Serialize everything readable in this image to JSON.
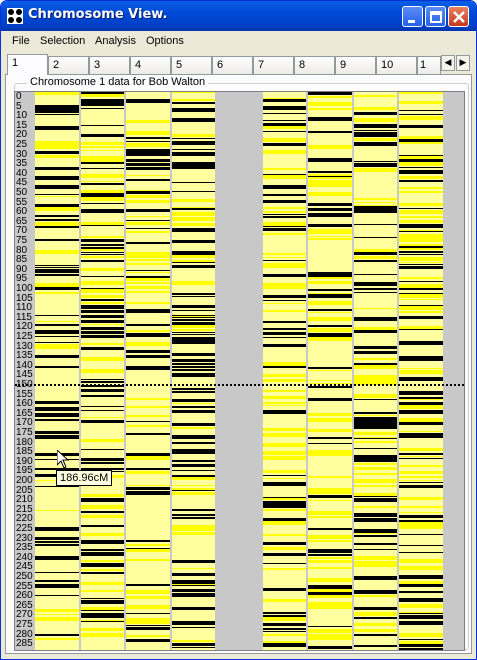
{
  "window": {
    "title": "Chromosome View."
  },
  "menu": [
    "File",
    "Selection",
    "Analysis",
    "Options"
  ],
  "tabs": [
    "1",
    "2",
    "3",
    "4",
    "5",
    "6",
    "7",
    "8",
    "9",
    "10"
  ],
  "active_tab": 0,
  "group_label": "Chromosome 1 data for  Bob Walton",
  "position_labels": [
    "0",
    "5",
    "10",
    "15",
    "20",
    "25",
    "30",
    "35",
    "40",
    "45",
    "50",
    "55",
    "60",
    "65",
    "70",
    "75",
    "80",
    "85",
    "90",
    "95",
    "100",
    "105",
    "110",
    "115",
    "120",
    "125",
    "130",
    "135",
    "140",
    "145",
    "150",
    "155",
    "160",
    "165",
    "170",
    "175",
    "180",
    "185",
    "190",
    "195",
    "200",
    "205",
    "210",
    "215",
    "220",
    "225",
    "230",
    "235",
    "240",
    "245",
    "250",
    "255",
    "260",
    "265",
    "270",
    "275",
    "280",
    "285"
  ],
  "tooltip": "186.96cM",
  "colors": {
    "black": "#000000",
    "yellow": "#FFFF00",
    "pale": "#FFFFA0",
    "grey": "#C8C8C8",
    "title_blue": "#0054E3"
  },
  "columns": [
    {
      "name": "2",
      "density": 0.45,
      "yellow": 0.25
    },
    {
      "name": "3",
      "density": 0.55,
      "yellow": 0.4
    },
    {
      "name": "4",
      "density": 0.4,
      "yellow": 0.45
    },
    {
      "name": "5",
      "density": 0.55,
      "yellow": 0.4
    },
    {
      "name": "6",
      "density": 0.0,
      "yellow": 0.0
    },
    {
      "name": "7",
      "density": 0.45,
      "yellow": 0.45
    },
    {
      "name": "8",
      "density": 0.35,
      "yellow": 0.45
    },
    {
      "name": "9",
      "density": 0.45,
      "yellow": 0.45
    },
    {
      "name": "10",
      "density": 0.5,
      "yellow": 0.45
    }
  ]
}
